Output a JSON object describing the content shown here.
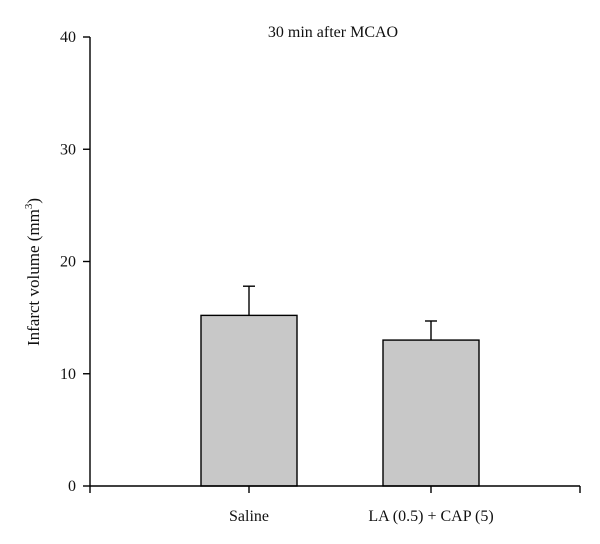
{
  "chart_data": {
    "type": "bar",
    "title": "30 min after MCAO",
    "xlabel": "",
    "ylabel": "Infarct volume (mm",
    "ylabel_superscript": "3",
    "ylabel_close": ")",
    "categories": [
      "Saline",
      "LA (0.5) + CAP (5)"
    ],
    "values": [
      15.2,
      13.0
    ],
    "errors": [
      2.6,
      1.7
    ],
    "ylim": [
      0,
      40
    ],
    "yticks": [
      0,
      10,
      20,
      30,
      40
    ],
    "ytick_labels": [
      "0",
      "10",
      "20",
      "30",
      "40"
    ],
    "grid": false,
    "legend": "none",
    "bar_color": "#c8c8c8",
    "edge_color": "#000000"
  }
}
